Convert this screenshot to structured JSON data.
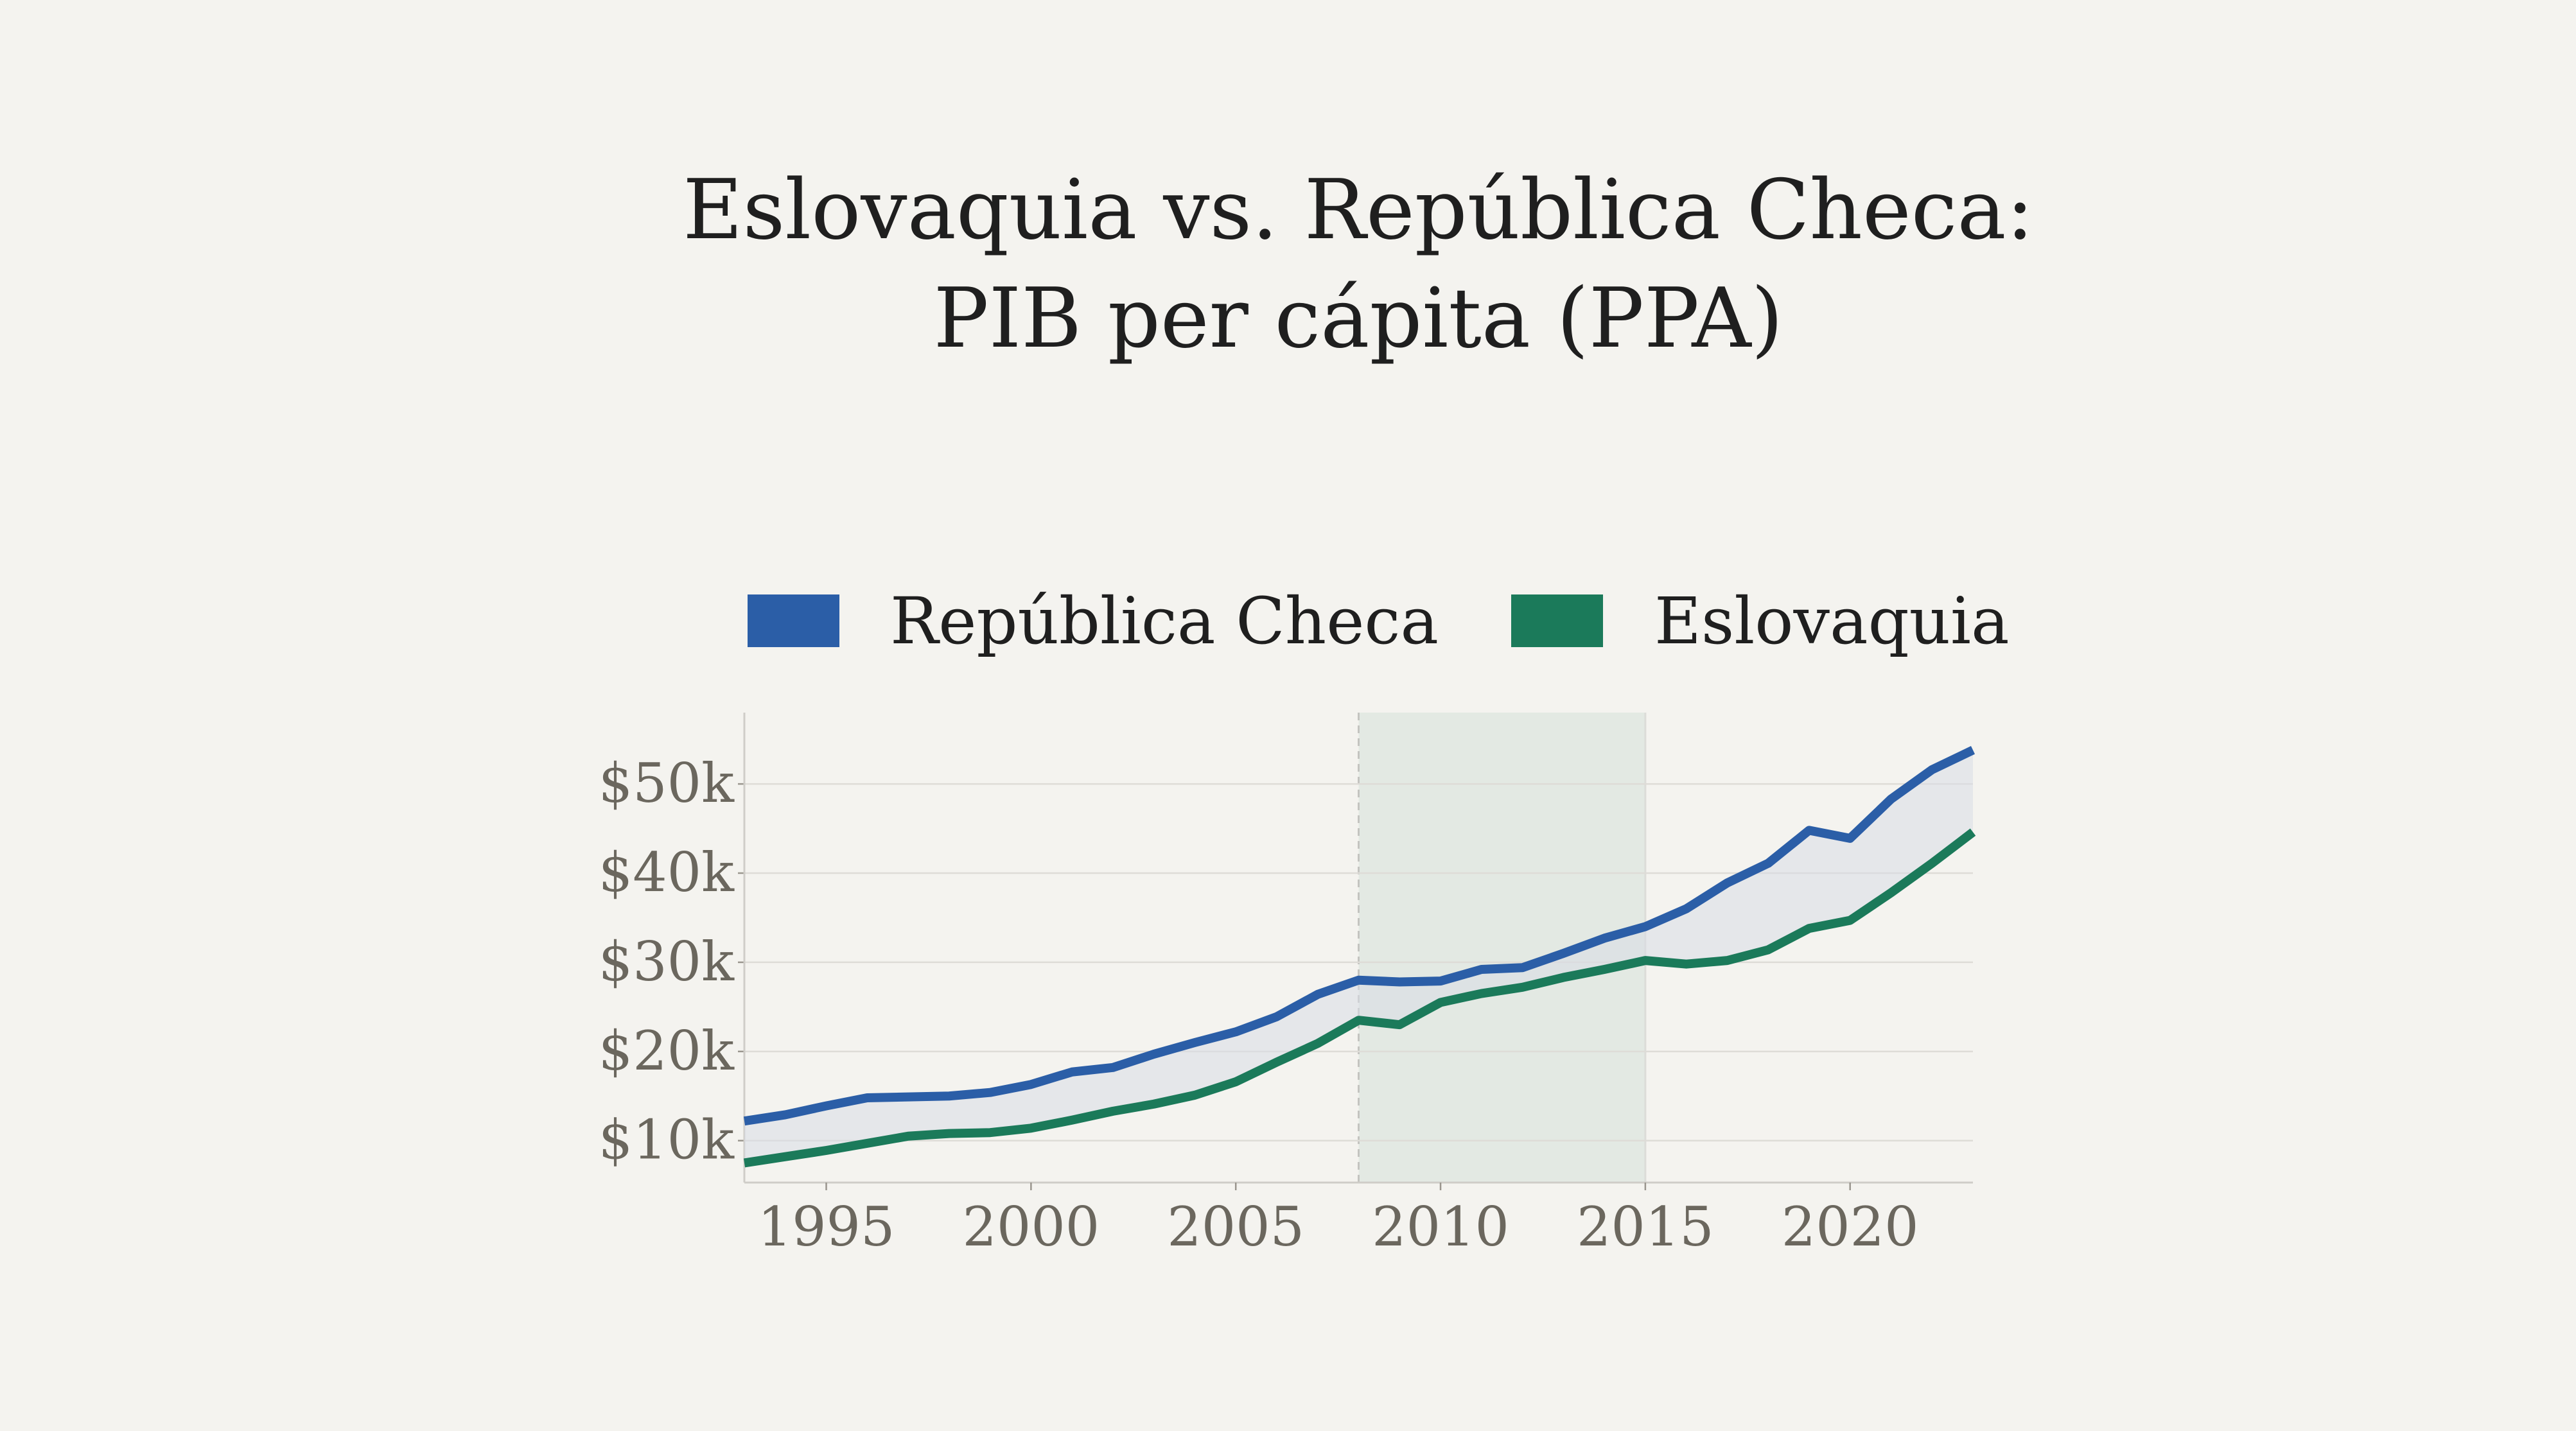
{
  "chart_data": {
    "type": "line",
    "title": [
      "Eslovaquia vs. República Checa:",
      "PIB per cápita (PPA)"
    ],
    "xlabel": "",
    "ylabel": "",
    "xlim": [
      1993,
      2023
    ],
    "ylim": [
      5.3,
      58
    ],
    "x_ticks": [
      1995,
      2000,
      2005,
      2010,
      2015,
      2020
    ],
    "x_tick_labels": [
      "1995",
      "2000",
      "2005",
      "2010",
      "2015",
      "2020"
    ],
    "y_ticks": [
      10,
      20,
      30,
      40,
      50
    ],
    "y_tick_labels": [
      "$10k",
      "$20k",
      "$30k",
      "$40k",
      "$50k"
    ],
    "grid": "horizontal",
    "legend_position": "top",
    "x": [
      1993,
      1994,
      1995,
      1996,
      1997,
      1998,
      1999,
      2000,
      2001,
      2002,
      2003,
      2004,
      2005,
      2006,
      2007,
      2008,
      2009,
      2010,
      2011,
      2012,
      2013,
      2014,
      2015,
      2016,
      2017,
      2018,
      2019,
      2020,
      2021,
      2022,
      2023
    ],
    "series": [
      {
        "name": "República Checa",
        "color": "#2b5ea7",
        "values": [
          12.2,
          12.9,
          13.9,
          14.8,
          14.9,
          15.0,
          15.4,
          16.3,
          17.7,
          18.2,
          19.7,
          21.0,
          22.2,
          23.9,
          26.4,
          28.0,
          27.8,
          27.9,
          29.2,
          29.4,
          31.0,
          32.7,
          34.0,
          36.0,
          38.9,
          41.1,
          44.8,
          43.9,
          48.3,
          51.6,
          53.8
        ]
      },
      {
        "name": "Eslovaquia",
        "color": "#1b7a5a",
        "values": [
          7.5,
          8.2,
          8.9,
          9.7,
          10.5,
          10.8,
          10.9,
          11.4,
          12.3,
          13.3,
          14.1,
          15.1,
          16.6,
          18.8,
          20.9,
          23.5,
          23.0,
          25.5,
          26.5,
          27.2,
          28.3,
          29.2,
          30.2,
          29.8,
          30.2,
          31.4,
          33.8,
          34.7,
          37.8,
          41.1,
          44.6
        ]
      }
    ],
    "shaded_period": [
      2008,
      2015
    ],
    "units": "thousand USD (PPP)"
  }
}
